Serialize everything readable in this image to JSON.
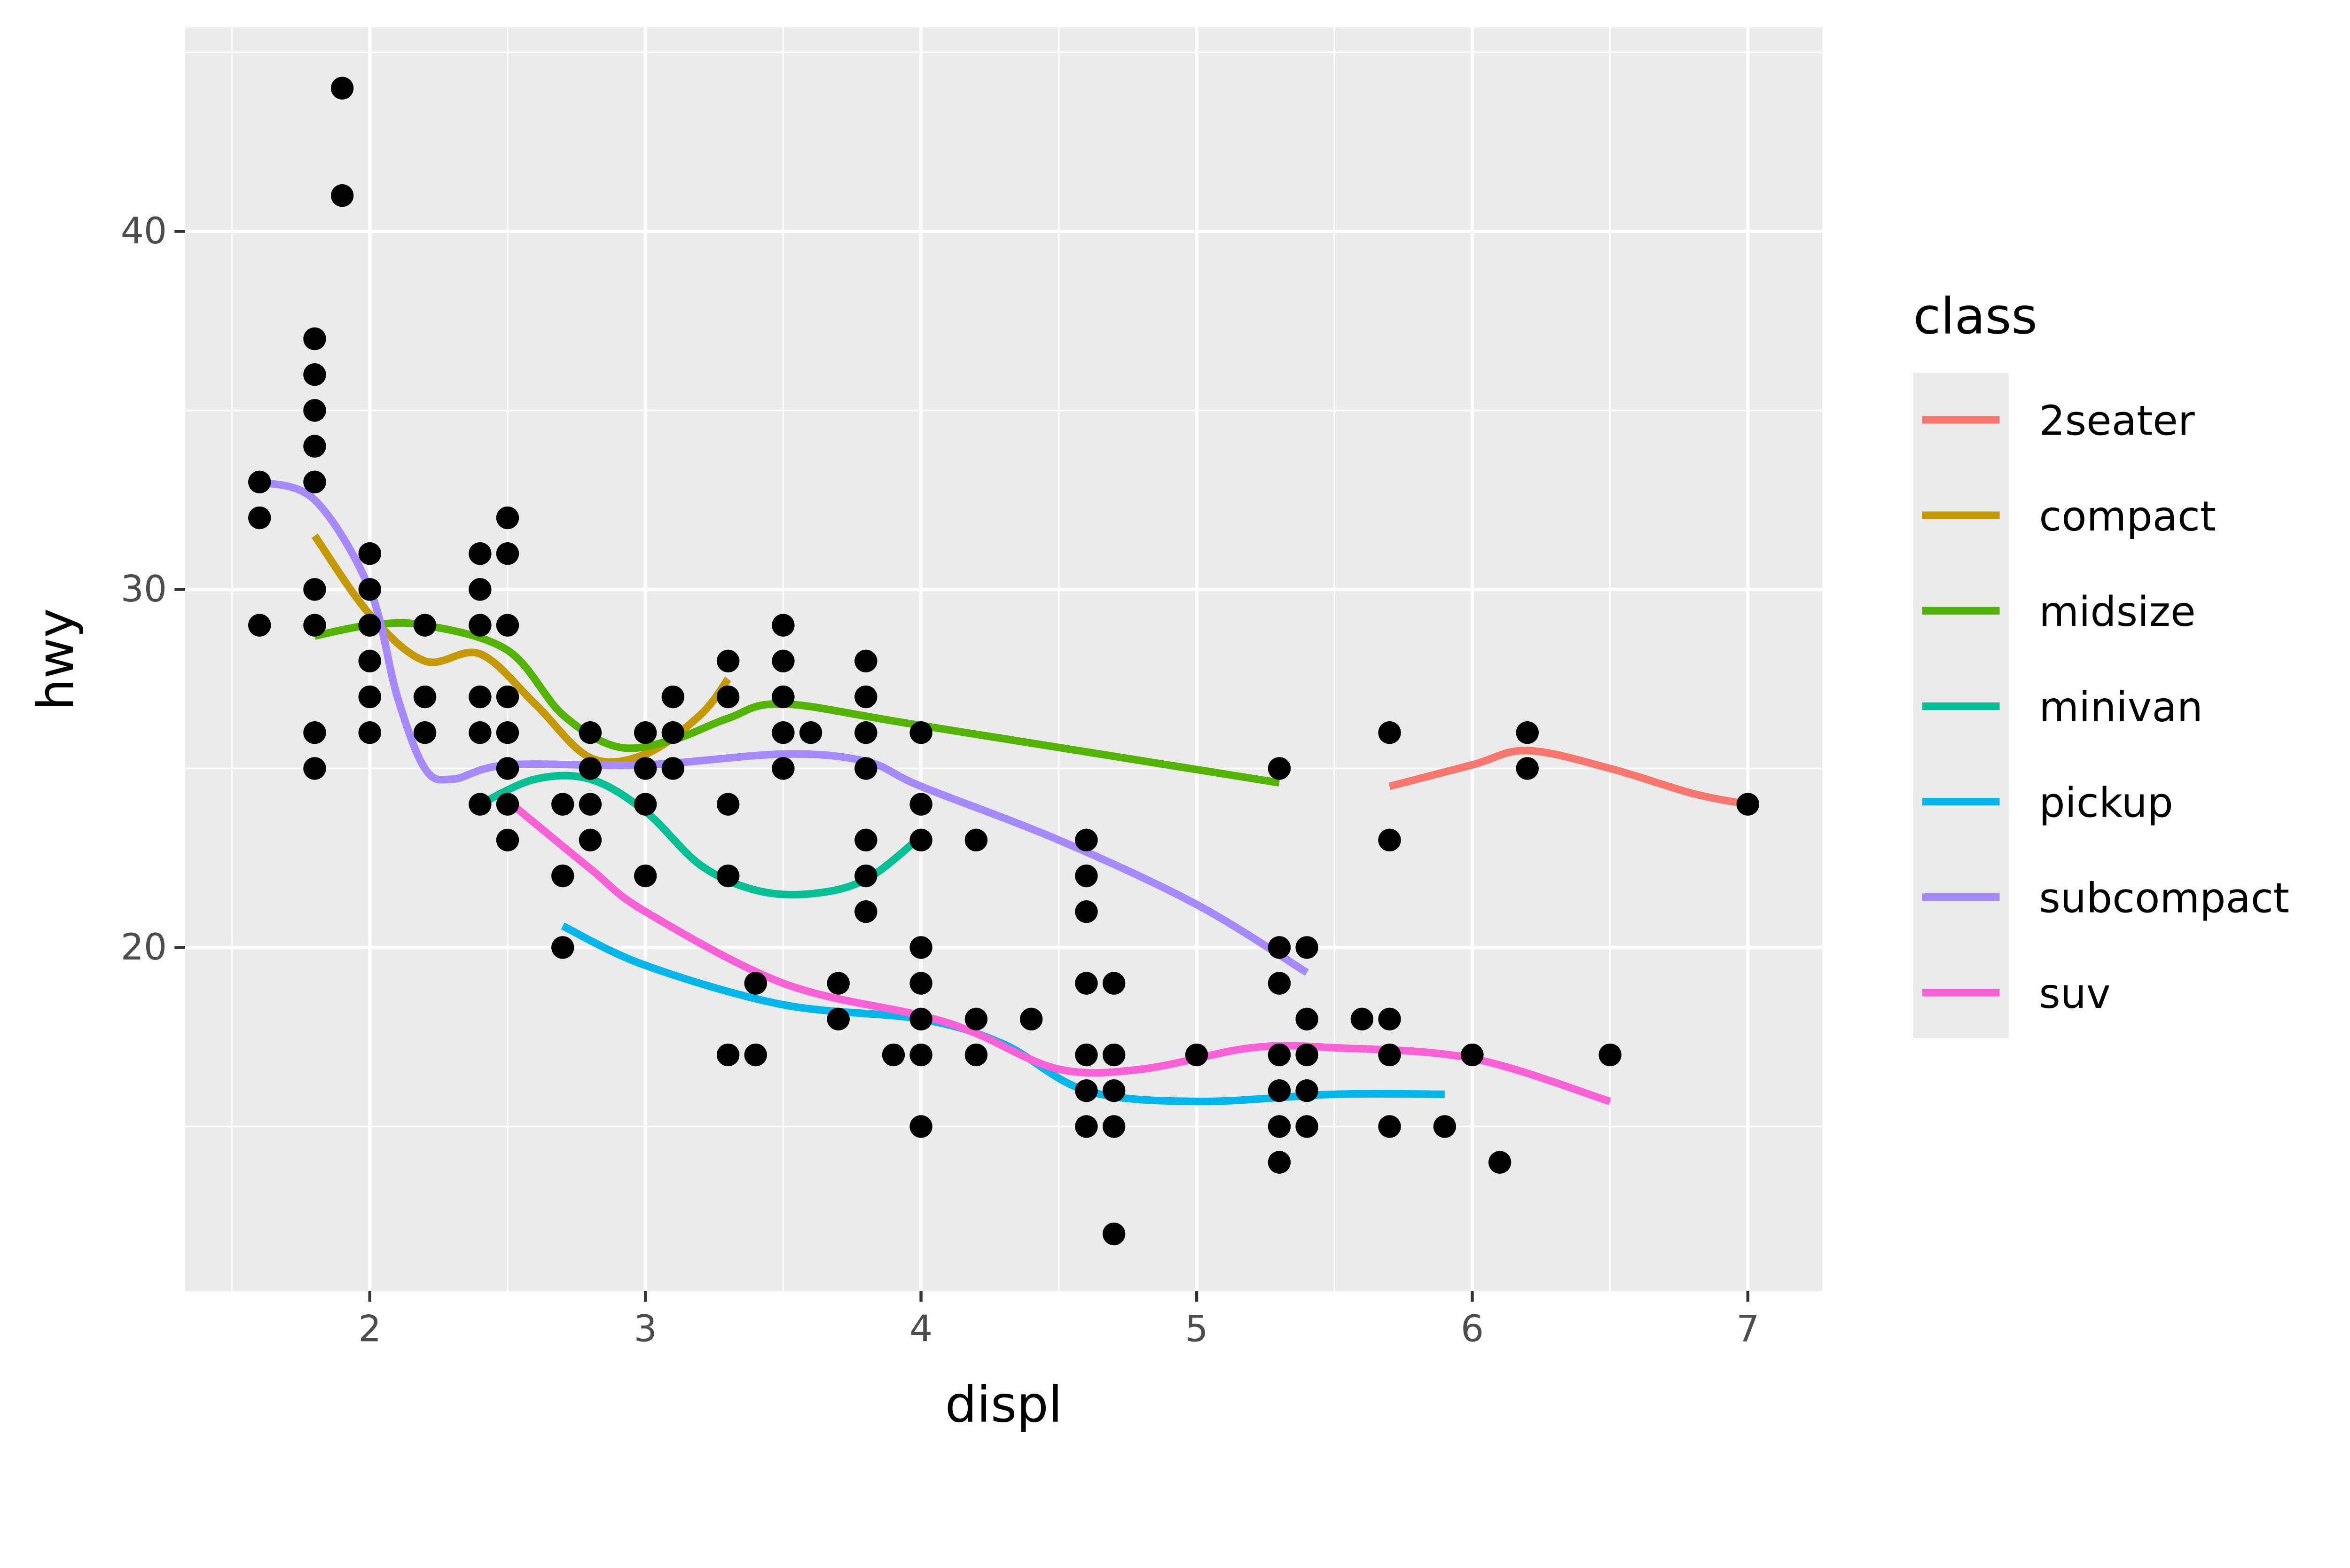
{
  "chart_data": {
    "type": "scatter",
    "xlabel": "displ",
    "ylabel": "hwy",
    "xlim": [
      1.33,
      7.27
    ],
    "ylim": [
      10.4,
      45.7
    ],
    "x_ticks": [
      2,
      3,
      4,
      5,
      6,
      7
    ],
    "y_ticks": [
      20,
      30,
      40
    ],
    "grid": true,
    "background": "#EBEBEB",
    "legend": {
      "title": "class",
      "position": "right"
    },
    "points_color": "#000000",
    "points": [
      [
        1.6,
        33
      ],
      [
        1.6,
        32
      ],
      [
        1.6,
        29
      ],
      [
        1.8,
        37
      ],
      [
        1.8,
        36
      ],
      [
        1.8,
        35
      ],
      [
        1.8,
        34
      ],
      [
        1.8,
        33
      ],
      [
        1.8,
        30
      ],
      [
        1.8,
        29
      ],
      [
        1.8,
        26
      ],
      [
        1.8,
        25
      ],
      [
        1.9,
        44
      ],
      [
        1.9,
        41
      ],
      [
        2.0,
        31
      ],
      [
        2.0,
        30
      ],
      [
        2.0,
        29
      ],
      [
        2.0,
        28
      ],
      [
        2.0,
        27
      ],
      [
        2.0,
        26
      ],
      [
        2.2,
        29
      ],
      [
        2.2,
        27
      ],
      [
        2.2,
        26
      ],
      [
        2.4,
        31
      ],
      [
        2.4,
        30
      ],
      [
        2.4,
        29
      ],
      [
        2.4,
        27
      ],
      [
        2.4,
        26
      ],
      [
        2.4,
        24
      ],
      [
        2.5,
        32
      ],
      [
        2.5,
        31
      ],
      [
        2.5,
        29
      ],
      [
        2.5,
        27
      ],
      [
        2.5,
        26
      ],
      [
        2.5,
        25
      ],
      [
        2.5,
        24
      ],
      [
        2.5,
        23
      ],
      [
        2.7,
        24
      ],
      [
        2.7,
        22
      ],
      [
        2.7,
        20
      ],
      [
        2.8,
        26
      ],
      [
        2.8,
        25
      ],
      [
        2.8,
        24
      ],
      [
        2.8,
        23
      ],
      [
        3.0,
        26
      ],
      [
        3.0,
        25
      ],
      [
        3.0,
        24
      ],
      [
        3.0,
        22
      ],
      [
        3.1,
        27
      ],
      [
        3.1,
        26
      ],
      [
        3.1,
        25
      ],
      [
        3.3,
        28
      ],
      [
        3.3,
        27
      ],
      [
        3.3,
        24
      ],
      [
        3.3,
        22
      ],
      [
        3.3,
        17
      ],
      [
        3.4,
        19
      ],
      [
        3.4,
        17
      ],
      [
        3.5,
        29
      ],
      [
        3.5,
        28
      ],
      [
        3.5,
        27
      ],
      [
        3.5,
        26
      ],
      [
        3.5,
        25
      ],
      [
        3.6,
        26
      ],
      [
        3.7,
        19
      ],
      [
        3.7,
        18
      ],
      [
        3.8,
        28
      ],
      [
        3.8,
        27
      ],
      [
        3.8,
        26
      ],
      [
        3.8,
        25
      ],
      [
        3.8,
        23
      ],
      [
        3.8,
        22
      ],
      [
        3.8,
        21
      ],
      [
        3.9,
        17
      ],
      [
        4.0,
        26
      ],
      [
        4.0,
        24
      ],
      [
        4.0,
        23
      ],
      [
        4.0,
        20
      ],
      [
        4.0,
        19
      ],
      [
        4.0,
        18
      ],
      [
        4.0,
        17
      ],
      [
        4.0,
        15
      ],
      [
        4.2,
        23
      ],
      [
        4.2,
        18
      ],
      [
        4.2,
        17
      ],
      [
        4.4,
        18
      ],
      [
        4.6,
        23
      ],
      [
        4.6,
        22
      ],
      [
        4.6,
        21
      ],
      [
        4.6,
        19
      ],
      [
        4.6,
        17
      ],
      [
        4.6,
        16
      ],
      [
        4.6,
        15
      ],
      [
        4.7,
        19
      ],
      [
        4.7,
        17
      ],
      [
        4.7,
        16
      ],
      [
        4.7,
        15
      ],
      [
        4.7,
        12
      ],
      [
        5.0,
        17
      ],
      [
        5.3,
        25
      ],
      [
        5.3,
        20
      ],
      [
        5.3,
        19
      ],
      [
        5.3,
        17
      ],
      [
        5.3,
        16
      ],
      [
        5.3,
        15
      ],
      [
        5.3,
        14
      ],
      [
        5.4,
        20
      ],
      [
        5.4,
        18
      ],
      [
        5.4,
        17
      ],
      [
        5.4,
        16
      ],
      [
        5.4,
        15
      ],
      [
        5.6,
        18
      ],
      [
        5.7,
        26
      ],
      [
        5.7,
        23
      ],
      [
        5.7,
        18
      ],
      [
        5.7,
        17
      ],
      [
        5.7,
        15
      ],
      [
        5.9,
        15
      ],
      [
        6.0,
        17
      ],
      [
        6.1,
        14
      ],
      [
        6.2,
        26
      ],
      [
        6.2,
        25
      ],
      [
        6.5,
        17
      ],
      [
        7.0,
        24
      ]
    ],
    "series": [
      {
        "name": "2seater",
        "color": "#F8766D",
        "x": [
          5.7,
          6.0,
          6.2,
          6.5,
          6.8,
          7.0
        ],
        "y": [
          24.5,
          25.1,
          25.5,
          25.0,
          24.3,
          24.0
        ]
      },
      {
        "name": "compact",
        "color": "#C49A00",
        "x": [
          1.8,
          2.0,
          2.2,
          2.4,
          2.6,
          2.8,
          3.0,
          3.2,
          3.3
        ],
        "y": [
          31.5,
          29.3,
          28.0,
          28.2,
          26.8,
          25.3,
          25.4,
          26.5,
          27.5
        ]
      },
      {
        "name": "midsize",
        "color": "#53B400",
        "x": [
          1.8,
          2.0,
          2.2,
          2.5,
          2.7,
          2.9,
          3.1,
          3.3,
          3.5,
          4.0,
          5.3
        ],
        "y": [
          28.7,
          29.0,
          29.0,
          28.3,
          26.5,
          25.6,
          25.8,
          26.4,
          26.8,
          26.2,
          24.6
        ]
      },
      {
        "name": "minivan",
        "color": "#00C094",
        "x": [
          2.4,
          2.6,
          2.8,
          3.0,
          3.2,
          3.4,
          3.6,
          3.8,
          4.0
        ],
        "y": [
          24.0,
          24.7,
          24.7,
          23.8,
          22.3,
          21.6,
          21.5,
          21.9,
          23.1
        ]
      },
      {
        "name": "pickup",
        "color": "#00B6EB",
        "x": [
          2.7,
          3.0,
          3.5,
          4.0,
          4.3,
          4.6,
          5.0,
          5.5,
          5.9
        ],
        "y": [
          20.6,
          19.5,
          18.4,
          18.0,
          17.3,
          16.0,
          15.7,
          15.9,
          15.9
        ]
      },
      {
        "name": "subcompact",
        "color": "#A58AFF",
        "x": [
          1.6,
          1.8,
          2.0,
          2.1,
          2.2,
          2.3,
          2.5,
          3.0,
          3.5,
          3.8,
          4.0,
          4.5,
          5.0,
          5.4
        ],
        "y": [
          33.0,
          32.5,
          30.0,
          27.0,
          25.0,
          24.7,
          25.1,
          25.1,
          25.4,
          25.2,
          24.5,
          23.0,
          21.2,
          19.3
        ]
      },
      {
        "name": "suv",
        "color": "#FB61D7",
        "x": [
          2.5,
          2.8,
          3.0,
          3.5,
          4.0,
          4.2,
          4.5,
          4.8,
          5.2,
          5.5,
          6.0,
          6.5
        ],
        "y": [
          24.1,
          22.2,
          21.0,
          19.0,
          18.1,
          17.6,
          16.6,
          16.6,
          17.2,
          17.2,
          16.9,
          15.7
        ]
      }
    ]
  }
}
